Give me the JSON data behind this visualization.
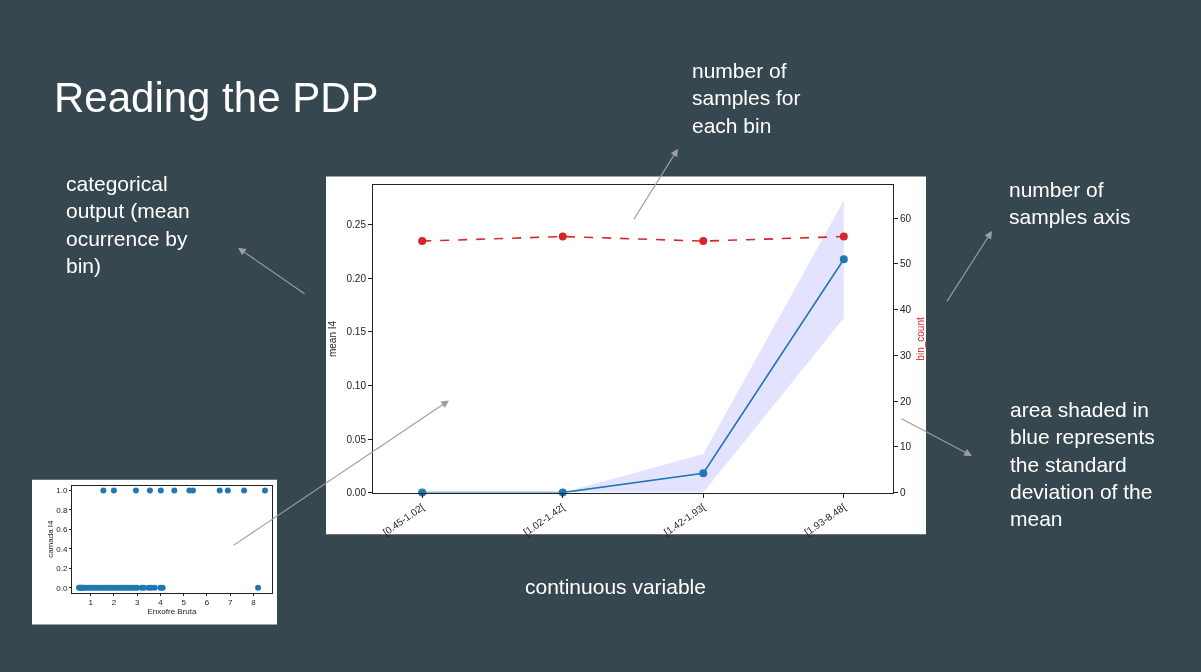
{
  "chart_data": [
    {
      "type": "line",
      "title": "Reading the PDP",
      "annotations": [
        "number of samples for each bin",
        "number of samples axis",
        "categorical output (mean ocurrence by bin)",
        "area shaded in blue represents the standard deviation of the mean",
        "continuous variable"
      ],
      "categories": [
        "[0.45-1.02[",
        "[1.02-1.42[",
        "[1.42-1.93[",
        "[1.93-8.48["
      ],
      "ylabel": "mean I4",
      "y2label": "bin_count",
      "ylim": [
        0,
        0.287
      ],
      "yticks": [
        {
          "value": 0,
          "label": "0.00"
        },
        {
          "value": 0.05,
          "label": "0.05"
        },
        {
          "value": 0.1,
          "label": "0.10"
        },
        {
          "value": 0.15,
          "label": "0.15"
        },
        {
          "value": 0.2,
          "label": "0.20"
        },
        {
          "value": 0.25,
          "label": "0.25"
        }
      ],
      "y2lim": [
        0,
        67.2
      ],
      "y2ticks": [
        0,
        10,
        20,
        30,
        40,
        50,
        60
      ],
      "marker": "circle",
      "series": [
        {
          "color": "#1f77b4",
          "values": [
            0,
            0,
            0.018,
            0.218
          ],
          "lower": [
            0,
            0,
            0,
            0.163
          ],
          "upper": [
            0,
            0,
            0.036,
            0.273
          ],
          "line_style": "solid"
        },
        {
          "color": "#d62728",
          "values": [
            55,
            56,
            55,
            56
          ],
          "axis": "y2",
          "line_style": "dashed"
        }
      ]
    },
    {
      "type": "scatter",
      "xlabel": "Enxofre Bruta",
      "ylabel": "camada I4",
      "x": [
        0.5,
        0.55,
        0.6,
        0.65,
        0.7,
        0.8,
        0.9,
        1.0,
        1.1,
        1.2,
        1.3,
        1.4,
        1.5,
        1.6,
        1.7,
        1.8,
        1.9,
        2.0,
        2.1,
        2.2,
        2.3,
        2.4,
        2.5,
        2.6,
        2.7,
        2.8,
        2.9,
        3.0,
        3.2,
        3.3,
        3.5,
        3.6,
        3.75,
        4.0,
        4.1,
        8.2,
        1.55,
        2.0,
        2.95,
        3.55,
        4.02,
        4.6,
        5.25,
        5.4,
        6.55,
        6.9,
        7.6,
        8.5
      ],
      "values": [
        0,
        0,
        0,
        0,
        0,
        0,
        0,
        0,
        0,
        0,
        0,
        0,
        0,
        0,
        0,
        0,
        0,
        0,
        0,
        0,
        0,
        0,
        0,
        0,
        0,
        0,
        0,
        0,
        0,
        0,
        0,
        0,
        0,
        0,
        0,
        0,
        1,
        1,
        1,
        1,
        1,
        1,
        1,
        1,
        1,
        1,
        1,
        1
      ],
      "color": "#1f77b4",
      "marker": "circle",
      "xlim": [
        0.2,
        8.8
      ],
      "xticks": [
        1,
        2,
        3,
        4,
        5,
        6,
        7,
        8
      ],
      "ylim": [
        -0.05,
        1.05
      ],
      "yticks": [
        {
          "value": 0,
          "label": "0.0"
        },
        {
          "value": 0.2,
          "label": "0.2"
        },
        {
          "value": 0.4,
          "label": "0.4"
        },
        {
          "value": 0.6,
          "label": "0.6"
        },
        {
          "value": 0.8,
          "label": "0.8"
        },
        {
          "value": 1,
          "label": "1.0"
        }
      ]
    }
  ]
}
